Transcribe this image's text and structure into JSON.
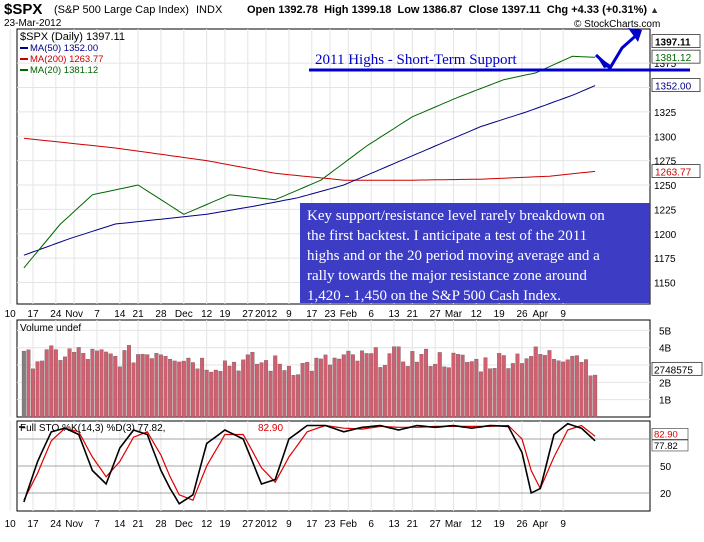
{
  "header": {
    "symbol": "$SPX",
    "name": "(S&P 500 Large Cap Index)",
    "exchange": "INDX",
    "date": "23-Mar-2012",
    "open_label": "Open",
    "open": "1392.78",
    "high_label": "High",
    "high": "1399.18",
    "low_label": "Low",
    "low": "1386.87",
    "close_label": "Close",
    "close": "1397.11",
    "chg_label": "Chg",
    "chg": "+4.33 (+0.31%)",
    "watermark": "© StockCharts.com"
  },
  "colors": {
    "price_up": "#000000",
    "price_down": "#cc0000",
    "ma50": "#000088",
    "ma200": "#cc0000",
    "ma20": "#006600",
    "support_line": "#0000cc",
    "annotation_text": "#ffffff",
    "volume_up": "#808080",
    "volume_down": "#d06070",
    "sto_k": "#000000",
    "sto_d": "#dd0000"
  },
  "chart_data": [
    {
      "type": "line",
      "title": "$SPX (Daily) 1397.11",
      "legend": [
        {
          "name": "MA(50) 1352.00",
          "color": "#000088"
        },
        {
          "name": "MA(200) 1263.77",
          "color": "#cc0000"
        },
        {
          "name": "MA(20) 1381.12",
          "color": "#006600"
        }
      ],
      "legend_position": "top-left",
      "y_ticks": [
        1150,
        1175,
        1200,
        1225,
        1250,
        1275,
        1300,
        1325,
        1350,
        1375
      ],
      "ylim": [
        1128,
        1410
      ],
      "right_markers": [
        {
          "label": "1397.11",
          "value": 1397.11,
          "bg": "#ffffff",
          "color": "#000000"
        },
        {
          "label": "1381.12",
          "value": 1381.12,
          "bg": "#ffffff",
          "color": "#006600"
        },
        {
          "label": "1352.00",
          "value": 1352.0,
          "bg": "#ffffff",
          "color": "#000088"
        },
        {
          "label": "1263.77",
          "value": 1263.77,
          "bg": "#ffffff",
          "color": "#cc0000"
        }
      ],
      "x_tick_labels": [
        "10",
        "17",
        "24",
        "Nov",
        "7",
        "14",
        "21",
        "28",
        "Dec",
        "12",
        "19",
        "27",
        "2012",
        "9",
        "17",
        "23",
        "Feb",
        "6",
        "13",
        "21",
        "27",
        "Mar",
        "12",
        "19",
        "26",
        "Apr",
        "9"
      ],
      "key_points": [
        {
          "bar": 0,
          "close": 1143
        },
        {
          "bar": 5,
          "close": 1228
        },
        {
          "bar": 10,
          "close": 1245
        },
        {
          "bar": 14,
          "close": 1285
        },
        {
          "bar": 17,
          "close": 1238
        },
        {
          "bar": 21,
          "close": 1260
        },
        {
          "bar": 25,
          "close": 1245
        },
        {
          "bar": 28,
          "close": 1250
        },
        {
          "bar": 32,
          "close": 1163
        },
        {
          "bar": 35,
          "close": 1195
        },
        {
          "bar": 38,
          "close": 1244
        },
        {
          "bar": 42,
          "close": 1260
        },
        {
          "bar": 46,
          "close": 1240
        },
        {
          "bar": 50,
          "close": 1212
        },
        {
          "bar": 54,
          "close": 1245
        },
        {
          "bar": 58,
          "close": 1265
        },
        {
          "bar": 62,
          "close": 1280
        },
        {
          "bar": 66,
          "close": 1295
        },
        {
          "bar": 70,
          "close": 1310
        },
        {
          "bar": 74,
          "close": 1318
        },
        {
          "bar": 78,
          "close": 1325
        },
        {
          "bar": 82,
          "close": 1340
        },
        {
          "bar": 86,
          "close": 1345
        },
        {
          "bar": 90,
          "close": 1350
        },
        {
          "bar": 94,
          "close": 1362
        },
        {
          "bar": 98,
          "close": 1365
        },
        {
          "bar": 102,
          "close": 1370
        },
        {
          "bar": 106,
          "close": 1375
        },
        {
          "bar": 110,
          "close": 1364
        },
        {
          "bar": 112,
          "close": 1345
        },
        {
          "bar": 114,
          "close": 1367
        },
        {
          "bar": 117,
          "close": 1395
        },
        {
          "bar": 120,
          "close": 1407
        },
        {
          "bar": 123,
          "close": 1390
        },
        {
          "bar": 125,
          "close": 1397
        }
      ],
      "ma50_points": [
        [
          0,
          1178
        ],
        [
          10,
          1195
        ],
        [
          20,
          1210
        ],
        [
          30,
          1215
        ],
        [
          40,
          1220
        ],
        [
          50,
          1228
        ],
        [
          60,
          1237
        ],
        [
          70,
          1250
        ],
        [
          80,
          1270
        ],
        [
          90,
          1290
        ],
        [
          100,
          1310
        ],
        [
          110,
          1325
        ],
        [
          120,
          1342
        ],
        [
          125,
          1352
        ]
      ],
      "ma200_points": [
        [
          0,
          1298
        ],
        [
          20,
          1288
        ],
        [
          40,
          1275
        ],
        [
          55,
          1262
        ],
        [
          70,
          1255
        ],
        [
          85,
          1255
        ],
        [
          100,
          1256
        ],
        [
          115,
          1259
        ],
        [
          125,
          1264
        ]
      ],
      "ma20_points": [
        [
          0,
          1165
        ],
        [
          8,
          1210
        ],
        [
          15,
          1240
        ],
        [
          25,
          1250
        ],
        [
          35,
          1220
        ],
        [
          45,
          1240
        ],
        [
          55,
          1235
        ],
        [
          65,
          1255
        ],
        [
          75,
          1290
        ],
        [
          85,
          1320
        ],
        [
          95,
          1340
        ],
        [
          105,
          1358
        ],
        [
          112,
          1365
        ],
        [
          120,
          1382
        ],
        [
          125,
          1381
        ]
      ],
      "annotations": [
        {
          "id": "support",
          "text": "2011 Highs - Short-Term Support"
        },
        {
          "id": "note",
          "lines": [
            "Key support/resistance level rarely breakdown on",
            "the first backtest. I anticipate a test of the 2011",
            "highs and or the 20 period moving average and a",
            "rally towards the major resistance zone around",
            "1,420 - 1,450 on the S&P 500 Cash Index."
          ]
        }
      ]
    },
    {
      "type": "bar",
      "title": "Volume undef",
      "y_ticks": [
        "1B",
        "2B",
        "3B",
        "4B",
        "5B"
      ],
      "y_tick_values": [
        1,
        2,
        3,
        4,
        5
      ],
      "ylim": [
        0,
        5.6
      ],
      "unit": "billions",
      "last_value_label": "2748575",
      "last_value": 2.75,
      "volume_profile": [
        [
          0,
          3.3
        ],
        [
          10,
          3.7
        ],
        [
          20,
          3.4
        ],
        [
          30,
          3.9
        ],
        [
          40,
          3.1
        ],
        [
          50,
          3.2
        ],
        [
          60,
          2.9
        ],
        [
          70,
          3.3
        ],
        [
          80,
          3.5
        ],
        [
          90,
          3.4
        ],
        [
          100,
          3.1
        ],
        [
          110,
          3.6
        ],
        [
          117,
          3.5
        ],
        [
          120,
          3.9
        ],
        [
          125,
          2.75
        ]
      ]
    },
    {
      "type": "line",
      "title": "Full STO %K(14,3) %D(3) 77.82, 82.90",
      "title_k": "Full STO %K(14,3) %D(3) 77.82,",
      "title_d": "82.90",
      "y_ticks": [
        20,
        50,
        80
      ],
      "ylim": [
        0,
        100
      ],
      "right_markers": [
        {
          "label": "82.90",
          "value": 82.9
        },
        {
          "label": "77.82",
          "value": 77.82
        }
      ],
      "k_points": [
        [
          0,
          10
        ],
        [
          3,
          55
        ],
        [
          6,
          88
        ],
        [
          9,
          92
        ],
        [
          12,
          85
        ],
        [
          15,
          45
        ],
        [
          18,
          30
        ],
        [
          21,
          70
        ],
        [
          24,
          90
        ],
        [
          27,
          85
        ],
        [
          30,
          45
        ],
        [
          32,
          25
        ],
        [
          34,
          8
        ],
        [
          37,
          18
        ],
        [
          40,
          75
        ],
        [
          44,
          90
        ],
        [
          48,
          80
        ],
        [
          52,
          30
        ],
        [
          55,
          35
        ],
        [
          58,
          80
        ],
        [
          62,
          95
        ],
        [
          66,
          95
        ],
        [
          70,
          88
        ],
        [
          74,
          93
        ],
        [
          78,
          95
        ],
        [
          82,
          90
        ],
        [
          86,
          95
        ],
        [
          90,
          93
        ],
        [
          94,
          95
        ],
        [
          98,
          92
        ],
        [
          102,
          95
        ],
        [
          106,
          94
        ],
        [
          109,
          65
        ],
        [
          111,
          20
        ],
        [
          113,
          25
        ],
        [
          116,
          85
        ],
        [
          119,
          97
        ],
        [
          122,
          92
        ],
        [
          125,
          78
        ]
      ],
      "d_points": [
        [
          0,
          12
        ],
        [
          3,
          42
        ],
        [
          6,
          78
        ],
        [
          9,
          92
        ],
        [
          12,
          88
        ],
        [
          15,
          60
        ],
        [
          18,
          38
        ],
        [
          21,
          55
        ],
        [
          24,
          82
        ],
        [
          27,
          88
        ],
        [
          30,
          62
        ],
        [
          32,
          38
        ],
        [
          34,
          18
        ],
        [
          37,
          12
        ],
        [
          40,
          50
        ],
        [
          44,
          85
        ],
        [
          48,
          85
        ],
        [
          52,
          48
        ],
        [
          55,
          32
        ],
        [
          58,
          60
        ],
        [
          62,
          88
        ],
        [
          66,
          95
        ],
        [
          70,
          92
        ],
        [
          74,
          91
        ],
        [
          78,
          94
        ],
        [
          82,
          93
        ],
        [
          86,
          93
        ],
        [
          90,
          94
        ],
        [
          94,
          94
        ],
        [
          98,
          94
        ],
        [
          102,
          94
        ],
        [
          106,
          95
        ],
        [
          109,
          80
        ],
        [
          111,
          45
        ],
        [
          113,
          25
        ],
        [
          116,
          60
        ],
        [
          119,
          90
        ],
        [
          122,
          95
        ],
        [
          125,
          83
        ]
      ]
    }
  ]
}
